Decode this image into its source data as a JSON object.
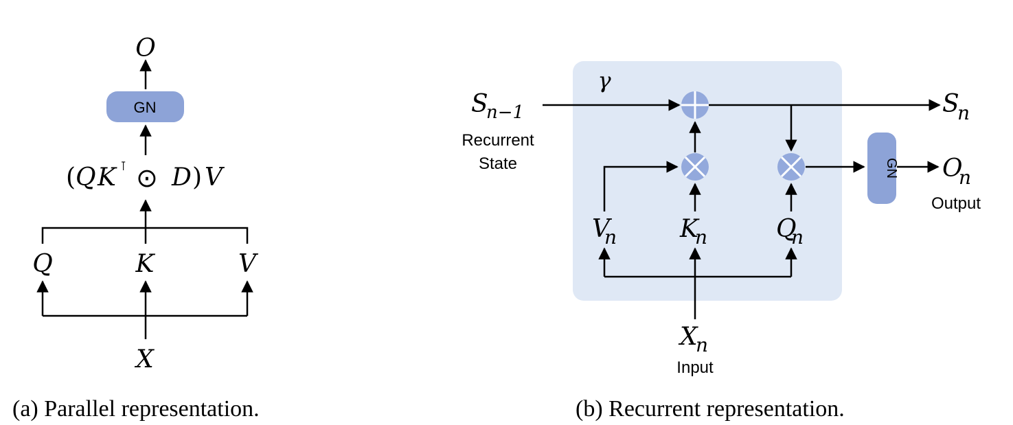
{
  "colors": {
    "panel": "#dfe8f5",
    "gn_block": "#8da3d7",
    "operator_circle": "#93a9dc",
    "line": "#000000"
  },
  "parallel": {
    "output": "O",
    "gn_label": "GN",
    "formula": {
      "open": "(",
      "q": "Q",
      "k": "K",
      "transpose": "⊺",
      "hadamard": "⊙",
      "d": "D",
      "close": ")",
      "v": "V"
    },
    "q": "Q",
    "k": "K",
    "v": "V",
    "input": "X",
    "caption": "(a) Parallel representation."
  },
  "recurrent": {
    "gamma": "γ",
    "prev_state": {
      "base": "S",
      "sub": "n−1"
    },
    "prev_state_label_line1": "Recurrent",
    "prev_state_label_line2": "State",
    "state": {
      "base": "S",
      "sub": "n"
    },
    "gn_label": "GN",
    "output": {
      "base": "O",
      "sub": "n"
    },
    "output_label": "Output",
    "v": {
      "base": "V",
      "sub": "n"
    },
    "k": {
      "base": "K",
      "sub": "n"
    },
    "q": {
      "base": "Q",
      "sub": "n"
    },
    "input": {
      "base": "X",
      "sub": "n"
    },
    "input_label": "Input",
    "caption": "(b) Recurrent representation."
  }
}
